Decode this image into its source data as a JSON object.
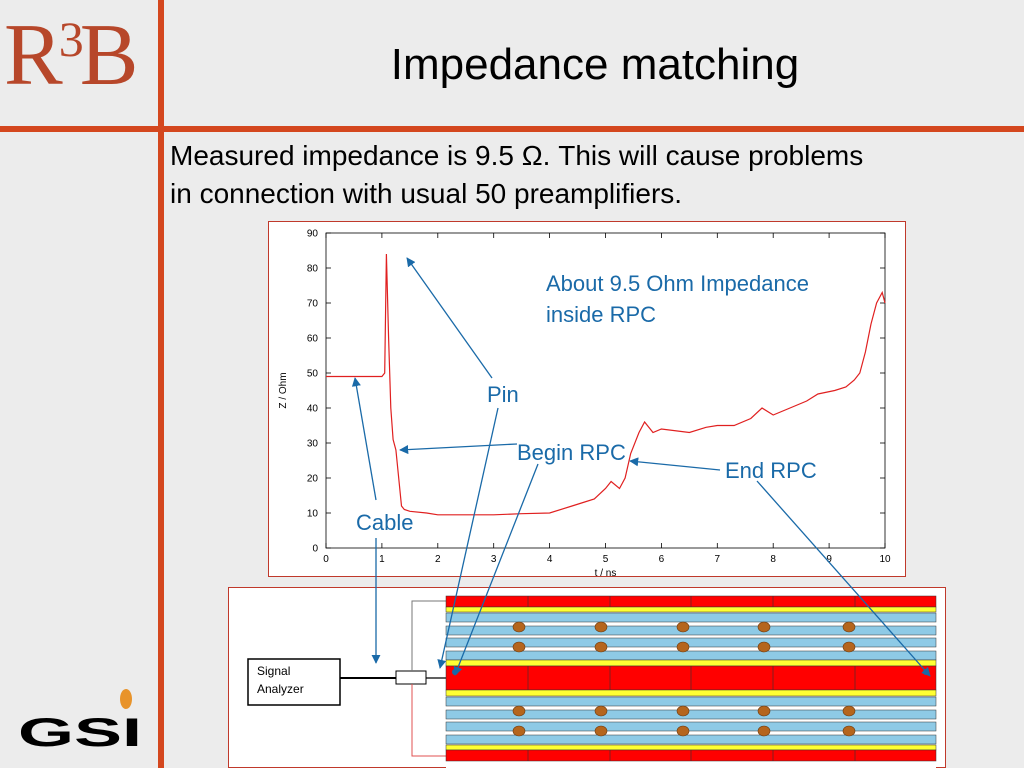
{
  "slide": {
    "title": "Impedance matching",
    "body_line1": "Measured impedance is 9.5 Ω. This will cause problems",
    "body_line2": "in connection with usual 50 preamplifiers."
  },
  "logos": {
    "top": "R3B",
    "bottom": "GSI"
  },
  "colors": {
    "accent": "#d4471e",
    "curve": "#e02020",
    "annotation": "#1a6aa8",
    "rpc_red": "#ff0000",
    "rpc_blue": "#8ecae6",
    "rpc_yellow": "#ffff33"
  },
  "annotations": {
    "impedance_note_1": "About 9.5 Ohm Impedance",
    "impedance_note_2": "inside RPC",
    "pin": "Pin",
    "begin_rpc": "Begin RPC",
    "end_rpc": "End RPC",
    "cable": "Cable"
  },
  "diagram": {
    "analyzer_line1": "Signal",
    "analyzer_line2": "Analyzer"
  },
  "chart_data": {
    "type": "line",
    "xlabel": "t / ns",
    "ylabel": "Z / Ohm",
    "xlim": [
      0,
      10
    ],
    "ylim": [
      0,
      90
    ],
    "xticks": [
      0,
      1,
      2,
      3,
      4,
      5,
      6,
      7,
      8,
      9,
      10
    ],
    "yticks": [
      0,
      10,
      20,
      30,
      40,
      50,
      60,
      70,
      80,
      90
    ],
    "grid": false,
    "series": [
      {
        "x": [
          0,
          0.5,
          1.0,
          1.05,
          1.08,
          1.12,
          1.16,
          1.2,
          1.25,
          1.3,
          1.35,
          1.4,
          1.5,
          1.8,
          2.0,
          3.0,
          3.5,
          4.0,
          4.4,
          4.6,
          4.8,
          5.0,
          5.1,
          5.25,
          5.35,
          5.45,
          5.6,
          5.7,
          5.85,
          6.0,
          6.5,
          6.8,
          7.0,
          7.3,
          7.6,
          7.8,
          8.0,
          8.3,
          8.6,
          8.8,
          9.1,
          9.3,
          9.45,
          9.55,
          9.65,
          9.75,
          9.85,
          9.95,
          10.0
        ],
        "y": [
          49,
          49,
          49,
          50,
          84,
          60,
          40,
          31,
          28,
          20,
          12,
          11,
          10.5,
          10,
          9.5,
          9.5,
          9.8,
          10,
          12,
          13,
          14,
          17,
          19,
          17,
          20,
          27,
          33,
          36,
          33,
          34,
          33,
          34.5,
          35,
          35,
          37,
          40,
          38,
          40,
          42,
          44,
          45,
          46,
          48,
          50,
          56,
          64,
          70,
          73,
          70
        ]
      }
    ]
  }
}
